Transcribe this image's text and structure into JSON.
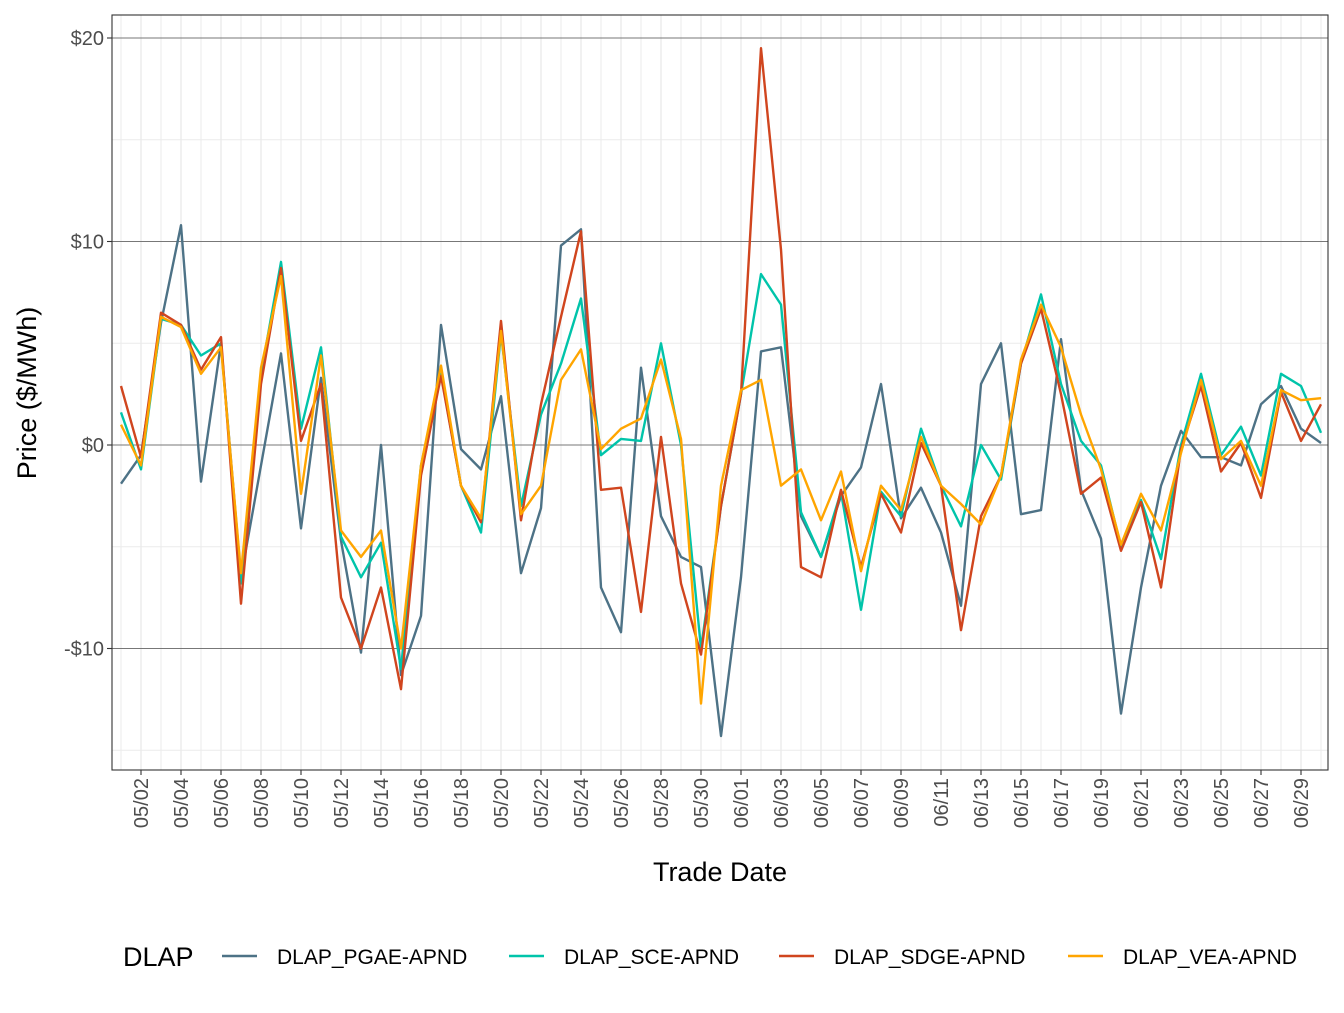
{
  "chart_data": {
    "type": "line",
    "title": "",
    "xlabel": "Trade Date",
    "ylabel": "Price ($/MWh)",
    "ylim": [
      -15.97,
      21.13
    ],
    "y_ticks": [
      -10,
      0,
      10,
      20
    ],
    "y_tick_labels": [
      "-$10",
      "$0",
      "$10",
      "$20"
    ],
    "x_start": "05/01",
    "x_tick_labels": [
      "05/02",
      "05/04",
      "05/06",
      "05/08",
      "05/10",
      "05/12",
      "05/14",
      "05/16",
      "05/18",
      "05/20",
      "05/22",
      "05/24",
      "05/26",
      "05/28",
      "05/30",
      "06/01",
      "06/03",
      "06/05",
      "06/07",
      "06/09",
      "06/11",
      "06/13",
      "06/15",
      "06/17",
      "06/19",
      "06/21",
      "06/23",
      "06/25",
      "06/27",
      "06/29"
    ],
    "grid": true,
    "legend": {
      "title": "DLAP",
      "position": "bottom"
    },
    "series": [
      {
        "name": "DLAP_PGAE-APND",
        "color": "#4D7286",
        "values": [
          -1.9,
          -0.5,
          6.0,
          10.8,
          -1.8,
          5.0,
          -6.5,
          -1.0,
          4.5,
          -4.1,
          3.3,
          -4.7,
          -10.2,
          0.0,
          -11.3,
          -8.4,
          5.9,
          -0.2,
          -1.2,
          2.4,
          -6.3,
          -3.1,
          9.8,
          10.6,
          -7.0,
          -9.2,
          3.8,
          -3.5,
          -5.5,
          -6.0,
          -14.3,
          -6.5,
          4.6,
          4.8,
          -3.5,
          -5.5,
          -2.5,
          -1.1,
          3.0,
          -3.6,
          -2.1,
          -4.3,
          -7.9,
          3.0,
          5.0,
          -3.4,
          -3.2,
          5.2,
          -2.2,
          -4.6,
          -13.2,
          -7.0,
          -2.0,
          0.7,
          -0.6,
          -0.6,
          -1.0,
          2.0,
          2.9,
          0.8,
          0.1
        ]
      },
      {
        "name": "DLAP_SCE-APND",
        "color": "#00C4AA",
        "values": [
          1.6,
          -1.2,
          6.2,
          5.9,
          4.4,
          5.0,
          -6.8,
          3.5,
          9.0,
          0.8,
          4.8,
          -4.5,
          -6.5,
          -4.8,
          -11.0,
          -1.0,
          3.5,
          -2.0,
          -4.3,
          5.5,
          -3.0,
          1.5,
          4.0,
          7.2,
          -0.5,
          0.3,
          0.2,
          5.0,
          0.0,
          -10.0,
          -3.0,
          2.5,
          8.4,
          6.9,
          -3.3,
          -5.5,
          -2.3,
          -8.1,
          -2.3,
          -3.5,
          0.8,
          -2.0,
          -4.0,
          0.0,
          -1.7,
          4.0,
          7.4,
          3.0,
          0.2,
          -1.0,
          -5.0,
          -2.7,
          -5.6,
          0.0,
          3.5,
          -0.5,
          0.9,
          -1.5,
          3.5,
          2.9,
          0.6
        ]
      },
      {
        "name": "DLAP_SDGE-APND",
        "color": "#D0451E",
        "values": [
          2.9,
          -0.6,
          6.5,
          5.9,
          3.7,
          5.3,
          -7.8,
          3.0,
          8.7,
          0.2,
          3.0,
          -7.5,
          -10.0,
          -7.0,
          -12.0,
          -1.5,
          3.4,
          -2.0,
          -3.8,
          6.1,
          -3.7,
          2.0,
          6.3,
          10.5,
          -2.2,
          -2.1,
          -8.2,
          0.4,
          -6.8,
          -10.3,
          -3.0,
          2.5,
          19.5,
          9.6,
          -6.0,
          -6.5,
          -2.2,
          -6.0,
          -2.4,
          -4.3,
          0.1,
          -2.0,
          -9.1,
          -3.5,
          -1.5,
          4.0,
          6.7,
          2.5,
          -2.4,
          -1.6,
          -5.2,
          -2.8,
          -7.0,
          -0.2,
          2.9,
          -1.3,
          0.1,
          -2.6,
          2.6,
          0.2,
          2.0
        ]
      },
      {
        "name": "DLAP_VEA-APND",
        "color": "#FFA500",
        "values": [
          1.0,
          -1.0,
          6.3,
          5.8,
          3.5,
          4.8,
          -6.3,
          3.8,
          8.3,
          -2.4,
          4.4,
          -4.2,
          -5.5,
          -4.2,
          -10.0,
          -1.0,
          3.9,
          -2.0,
          -3.6,
          5.6,
          -3.4,
          -2.0,
          3.2,
          4.7,
          -0.2,
          0.8,
          1.3,
          4.2,
          0.3,
          -12.7,
          -2.0,
          2.7,
          3.2,
          -2.0,
          -1.2,
          -3.7,
          -1.3,
          -6.2,
          -2.0,
          -3.2,
          0.4,
          -2.0,
          -2.9,
          -3.9,
          -1.5,
          4.2,
          6.9,
          4.8,
          1.5,
          -1.2,
          -4.9,
          -2.4,
          -4.2,
          -0.4,
          3.2,
          -0.7,
          0.2,
          -2.0,
          2.7,
          2.2,
          2.3
        ]
      }
    ]
  }
}
